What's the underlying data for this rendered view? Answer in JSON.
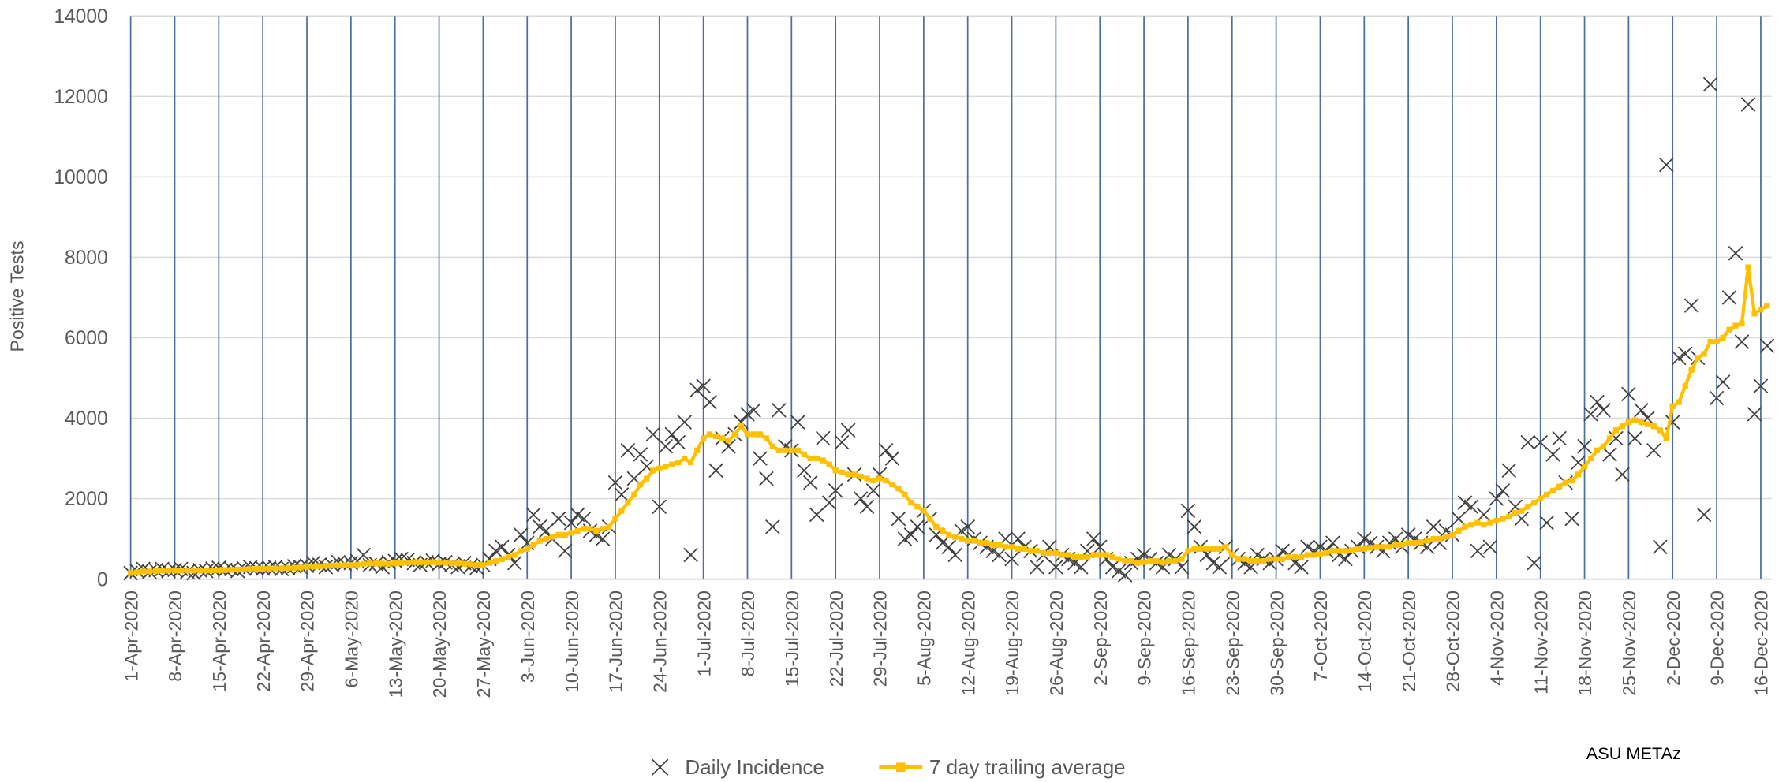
{
  "chart_data": {
    "type": "line",
    "y_label": "Positive Tests",
    "annotation": "ASU METAz",
    "categories": [
      "1-Apr-2020",
      null,
      null,
      null,
      null,
      null,
      null,
      "8-Apr-2020",
      null,
      null,
      null,
      null,
      null,
      null,
      "15-Apr-2020",
      null,
      null,
      null,
      null,
      null,
      null,
      "22-Apr-2020",
      null,
      null,
      null,
      null,
      null,
      null,
      "29-Apr-2020",
      null,
      null,
      null,
      null,
      null,
      null,
      "6-May-2020",
      null,
      null,
      null,
      null,
      null,
      null,
      "13-May-2020",
      null,
      null,
      null,
      null,
      null,
      null,
      "20-May-2020",
      null,
      null,
      null,
      null,
      null,
      null,
      "27-May-2020",
      null,
      null,
      null,
      null,
      null,
      null,
      "3-Jun-2020",
      null,
      null,
      null,
      null,
      null,
      null,
      "10-Jun-2020",
      null,
      null,
      null,
      null,
      null,
      null,
      "17-Jun-2020",
      null,
      null,
      null,
      null,
      null,
      null,
      "24-Jun-2020",
      null,
      null,
      null,
      null,
      null,
      null,
      "1-Jul-2020",
      null,
      null,
      null,
      null,
      null,
      null,
      "8-Jul-2020",
      null,
      null,
      null,
      null,
      null,
      null,
      "15-Jul-2020",
      null,
      null,
      null,
      null,
      null,
      null,
      "22-Jul-2020",
      null,
      null,
      null,
      null,
      null,
      null,
      "29-Jul-2020",
      null,
      null,
      null,
      null,
      null,
      null,
      "5-Aug-2020",
      null,
      null,
      null,
      null,
      null,
      null,
      "12-Aug-2020",
      null,
      null,
      null,
      null,
      null,
      null,
      "19-Aug-2020",
      null,
      null,
      null,
      null,
      null,
      null,
      "26-Aug-2020",
      null,
      null,
      null,
      null,
      null,
      null,
      "2-Sep-2020",
      null,
      null,
      null,
      null,
      null,
      null,
      "9-Sep-2020",
      null,
      null,
      null,
      null,
      null,
      null,
      "16-Sep-2020",
      null,
      null,
      null,
      null,
      null,
      null,
      "23-Sep-2020",
      null,
      null,
      null,
      null,
      null,
      null,
      "30-Sep-2020",
      null,
      null,
      null,
      null,
      null,
      null,
      "7-Oct-2020",
      null,
      null,
      null,
      null,
      null,
      null,
      "14-Oct-2020",
      null,
      null,
      null,
      null,
      null,
      null,
      "21-Oct-2020",
      null,
      null,
      null,
      null,
      null,
      null,
      "28-Oct-2020",
      null,
      null,
      null,
      null,
      null,
      null,
      "4-Nov-2020",
      null,
      null,
      null,
      null,
      null,
      null,
      "11-Nov-2020",
      null,
      null,
      null,
      null,
      null,
      null,
      "18-Nov-2020",
      null,
      null,
      null,
      null,
      null,
      null,
      "25-Nov-2020",
      null,
      null,
      null,
      null,
      null,
      null,
      "2-Dec-2020",
      null,
      null,
      null,
      null,
      null,
      null,
      "9-Dec-2020",
      null,
      null,
      null,
      null,
      null,
      null,
      "16-Dec-2020",
      null
    ],
    "series": [
      {
        "name": "Daily Incidence",
        "color": "#404040",
        "marker": "x",
        "line": false,
        "values": [
          150,
          200,
          250,
          180,
          220,
          250,
          200,
          230,
          250,
          180,
          150,
          220,
          200,
          260,
          280,
          230,
          250,
          200,
          260,
          300,
          270,
          260,
          280,
          300,
          250,
          270,
          320,
          300,
          330,
          400,
          360,
          300,
          350,
          420,
          380,
          400,
          450,
          600,
          350,
          380,
          300,
          420,
          450,
          500,
          480,
          400,
          350,
          420,
          460,
          380,
          420,
          350,
          300,
          400,
          320,
          280,
          350,
          500,
          700,
          800,
          600,
          400,
          1100,
          900,
          1600,
          1300,
          1200,
          1000,
          1500,
          700,
          1400,
          1600,
          1500,
          1200,
          1100,
          1000,
          1300,
          2400,
          2100,
          3200,
          2500,
          3100,
          2800,
          3600,
          1800,
          3300,
          3600,
          3400,
          3900,
          600,
          4700,
          4800,
          4400,
          2700,
          3500,
          3300,
          3600,
          3900,
          4100,
          4200,
          3000,
          2500,
          1300,
          4200,
          3300,
          3200,
          3900,
          2700,
          2400,
          1600,
          3500,
          1900,
          2200,
          3400,
          3700,
          2600,
          2000,
          1800,
          2200,
          2600,
          3200,
          3000,
          1500,
          1000,
          1100,
          1300,
          1700,
          1500,
          1100,
          900,
          800,
          600,
          1200,
          1300,
          1000,
          900,
          800,
          700,
          600,
          1000,
          500,
          1000,
          800,
          700,
          300,
          600,
          800,
          300,
          600,
          500,
          400,
          300,
          700,
          1000,
          800,
          500,
          300,
          200,
          100,
          400,
          500,
          600,
          500,
          400,
          300,
          600,
          500,
          300,
          1700,
          1300,
          800,
          600,
          400,
          300,
          800,
          600,
          500,
          400,
          300,
          600,
          500,
          400,
          500,
          700,
          600,
          400,
          300,
          800,
          700,
          800,
          700,
          900,
          600,
          500,
          700,
          800,
          1000,
          900,
          800,
          700,
          900,
          1000,
          800,
          1100,
          1000,
          900,
          800,
          1300,
          900,
          1200,
          1100,
          1500,
          1900,
          1800,
          700,
          1600,
          800,
          2000,
          2200,
          2700,
          1800,
          1500,
          3400,
          400,
          3400,
          1400,
          3100,
          3500,
          2400,
          1500,
          2900,
          3300,
          4100,
          4400,
          4200,
          3100,
          3500,
          2600,
          4600,
          3500,
          4200,
          4000,
          3200,
          800,
          10300,
          3900,
          5500,
          5600,
          6800,
          5500,
          1600,
          12300,
          4500,
          4900,
          7000,
          8100,
          5900,
          11800,
          4100,
          4800,
          5800
        ]
      },
      {
        "name": "7 day trailing average",
        "color": "#FFC000",
        "marker": "square",
        "line": true,
        "values": [
          150,
          170,
          190,
          190,
          200,
          210,
          210,
          210,
          210,
          215,
          210,
          210,
          215,
          215,
          220,
          225,
          230,
          235,
          240,
          250,
          255,
          255,
          260,
          265,
          270,
          275,
          280,
          285,
          300,
          310,
          320,
          330,
          335,
          340,
          345,
          350,
          360,
          380,
          390,
          390,
          385,
          380,
          390,
          400,
          410,
          420,
          420,
          415,
          420,
          410,
          400,
          395,
          390,
          380,
          370,
          350,
          350,
          400,
          450,
          500,
          550,
          600,
          700,
          750,
          850,
          950,
          1000,
          1050,
          1100,
          1100,
          1150,
          1200,
          1250,
          1250,
          1200,
          1250,
          1300,
          1500,
          1700,
          1900,
          2100,
          2350,
          2500,
          2700,
          2750,
          2800,
          2850,
          2900,
          3000,
          2900,
          3200,
          3500,
          3600,
          3550,
          3500,
          3450,
          3600,
          3800,
          3600,
          3600,
          3600,
          3500,
          3300,
          3200,
          3200,
          3200,
          3200,
          3100,
          3000,
          3000,
          2950,
          2850,
          2700,
          2650,
          2600,
          2600,
          2550,
          2500,
          2450,
          2500,
          2450,
          2350,
          2250,
          2100,
          1900,
          1800,
          1700,
          1500,
          1300,
          1200,
          1100,
          1050,
          1000,
          950,
          950,
          900,
          900,
          850,
          850,
          800,
          800,
          750,
          750,
          700,
          700,
          650,
          650,
          650,
          600,
          600,
          550,
          550,
          550,
          600,
          600,
          600,
          550,
          500,
          450,
          450,
          400,
          420,
          450,
          450,
          420,
          450,
          450,
          500,
          700,
          750,
          750,
          750,
          750,
          750,
          800,
          600,
          500,
          500,
          450,
          450,
          450,
          500,
          500,
          500,
          550,
          550,
          550,
          600,
          600,
          620,
          650,
          700,
          700,
          700,
          720,
          750,
          750,
          780,
          800,
          800,
          800,
          850,
          850,
          900,
          900,
          920,
          950,
          1000,
          1000,
          1050,
          1100,
          1200,
          1300,
          1350,
          1400,
          1350,
          1400,
          1450,
          1500,
          1550,
          1650,
          1700,
          1800,
          1900,
          2000,
          2100,
          2200,
          2300,
          2400,
          2450,
          2600,
          2800,
          3000,
          3200,
          3300,
          3500,
          3700,
          3800,
          3900,
          3950,
          3900,
          3850,
          3800,
          3700,
          3500,
          4300,
          4400,
          4800,
          5200,
          5500,
          5600,
          5900,
          5900,
          6000,
          6200,
          6300,
          6350,
          7750,
          6600,
          6700,
          6800
        ]
      }
    ],
    "ylim": [
      0,
      14000
    ],
    "yticks": [
      0,
      2000,
      4000,
      6000,
      8000,
      10000,
      12000,
      14000
    ],
    "grid": true,
    "x_grid": true,
    "x_grid_color": "#4a6fa0",
    "legend": "bottom"
  }
}
